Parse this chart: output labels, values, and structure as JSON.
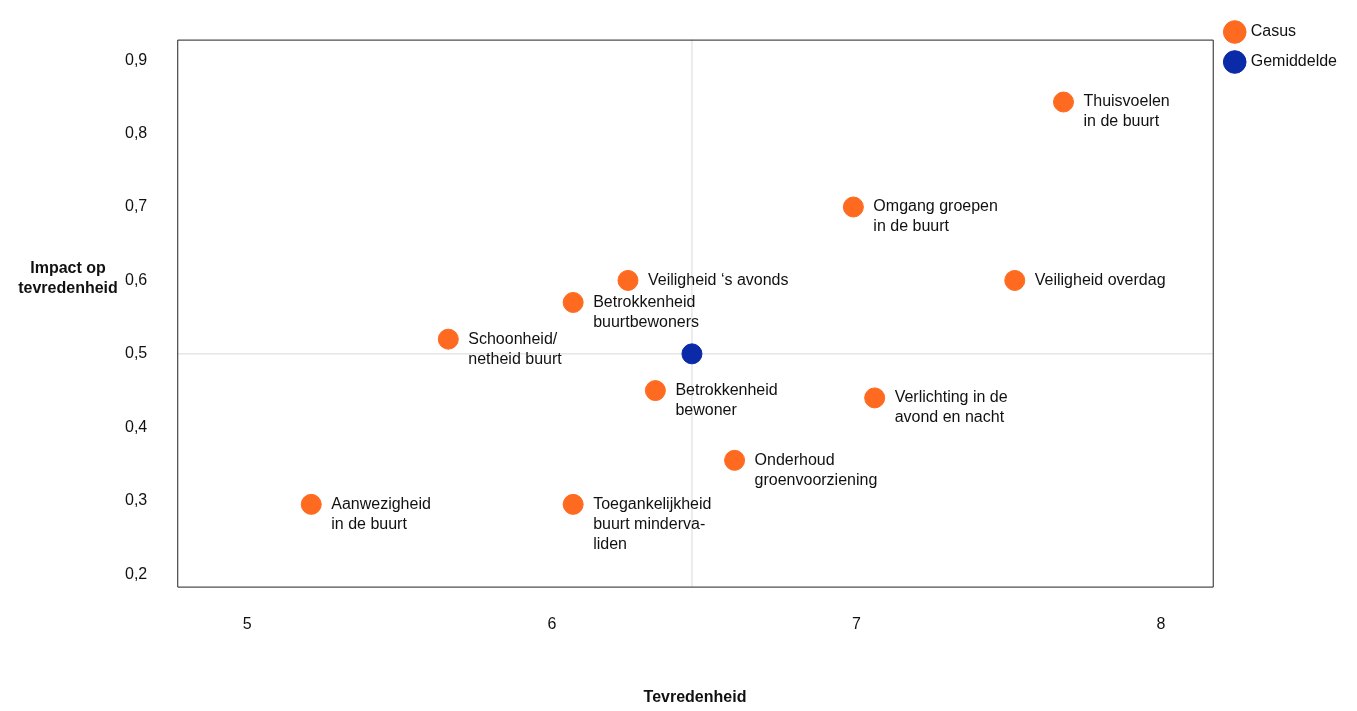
{
  "chart_data": {
    "type": "scatter",
    "xlabel": "Tevredenheid",
    "ylabel": "Impact op\ntevredenheid",
    "xlim": [
      4.77,
      8.17
    ],
    "ylim": [
      0.183,
      0.928
    ],
    "xticks": [
      5,
      6,
      7,
      8
    ],
    "yticks": [
      {
        "value": 0.2,
        "label": "0,2"
      },
      {
        "value": 0.3,
        "label": "0,3"
      },
      {
        "value": 0.4,
        "label": "0,4"
      },
      {
        "value": 0.5,
        "label": "0,5"
      },
      {
        "value": 0.6,
        "label": "0,6"
      },
      {
        "value": 0.7,
        "label": "0,7"
      },
      {
        "value": 0.8,
        "label": "0,8"
      },
      {
        "value": 0.9,
        "label": "0,9"
      }
    ],
    "series": [
      {
        "name": "Casus",
        "color": "#ff6a21",
        "x": [
          7.68,
          6.99,
          6.25,
          7.52,
          6.07,
          5.66,
          6.34,
          7.06,
          6.6,
          5.21,
          6.07
        ],
        "values": [
          0.843,
          0.7,
          0.6,
          0.6,
          0.57,
          0.52,
          0.45,
          0.44,
          0.355,
          0.295,
          0.295
        ]
      },
      {
        "name": "Gemiddelde",
        "color": "#0a2aa8",
        "x": [
          6.46
        ],
        "values": [
          0.5
        ]
      }
    ],
    "ref_lines": [
      {
        "axis": "x",
        "value": 6.46,
        "color": "#d9d9d9"
      },
      {
        "axis": "y",
        "value": 0.5,
        "color": "#d9d9d9"
      }
    ],
    "annotations": [
      {
        "text": "Thuisvoelen\nin de buurt",
        "x": 7.68,
        "y": 0.843
      },
      {
        "text": "Omgang groepen\nin de buurt",
        "x": 6.99,
        "y": 0.7
      },
      {
        "text": "Veiligheid ‘s avonds",
        "x": 6.25,
        "y": 0.6
      },
      {
        "text": "Veiligheid overdag",
        "x": 7.52,
        "y": 0.6
      },
      {
        "text": "Betrokkenheid\nbuurtbewoners",
        "x": 6.07,
        "y": 0.57
      },
      {
        "text": "Schoonheid/\nnetheid buurt",
        "x": 5.66,
        "y": 0.52
      },
      {
        "text": "Betrokkenheid\nbewoner",
        "x": 6.34,
        "y": 0.45
      },
      {
        "text": "Verlichting in de\navond en nacht",
        "x": 7.06,
        "y": 0.44
      },
      {
        "text": "Onderhoud\ngroenvoorziening",
        "x": 6.6,
        "y": 0.355
      },
      {
        "text": "Aanwezigheid\nin de buurt",
        "x": 5.21,
        "y": 0.295
      },
      {
        "text": "Toegankelijkheid\nbuurt minderva-\nliden",
        "x": 6.07,
        "y": 0.295
      }
    ],
    "legend": "top right",
    "marker": "circle",
    "grid": false
  }
}
